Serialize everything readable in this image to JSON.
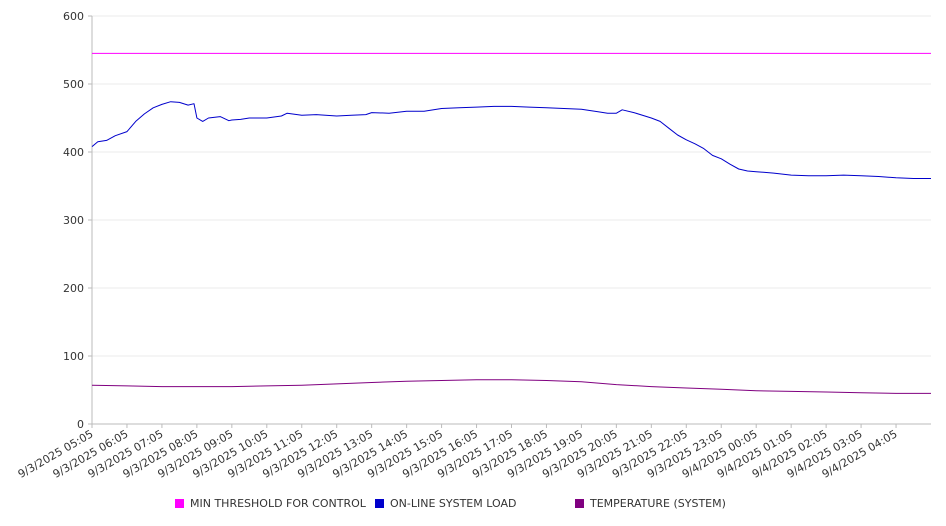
{
  "chart_data": {
    "type": "line",
    "title": "",
    "xlabel": "",
    "ylabel": "",
    "ylim": [
      0,
      600
    ],
    "yticks": [
      0,
      100,
      200,
      300,
      400,
      500,
      600
    ],
    "grid": true,
    "legend_position": "bottom",
    "x_range": [
      "2025-09-03 05:05",
      "2025-09-04 05:05"
    ],
    "categories": [
      "9/3/2025 05:05",
      "9/3/2025 06:05",
      "9/3/2025 07:05",
      "9/3/2025 08:05",
      "9/3/2025 09:05",
      "9/3/2025 10:05",
      "9/3/2025 11:05",
      "9/3/2025 12:05",
      "9/3/2025 13:05",
      "9/3/2025 14:05",
      "9/3/2025 15:05",
      "9/3/2025 16:05",
      "9/3/2025 17:05",
      "9/3/2025 18:05",
      "9/3/2025 19:05",
      "9/3/2025 20:05",
      "9/3/2025 21:05",
      "9/3/2025 22:05",
      "9/3/2025 23:05",
      "9/4/2025 00:05",
      "9/4/2025 01:05",
      "9/4/2025 02:05",
      "9/4/2025 03:05",
      "9/4/2025 04:05"
    ],
    "series": [
      {
        "name": "MIN THRESHOLD FOR CONTROL",
        "color": "#ff00ff",
        "x": [
          "2025-09-03 05:05",
          "2025-09-04 05:05"
        ],
        "values": [
          545,
          545
        ]
      },
      {
        "name": "ON-LINE SYSTEM LOAD",
        "color": "#0000cc",
        "x": [
          "2025-09-03 05:05",
          "2025-09-03 05:15",
          "2025-09-03 05:30",
          "2025-09-03 05:45",
          "2025-09-03 06:05",
          "2025-09-03 06:20",
          "2025-09-03 06:35",
          "2025-09-03 06:50",
          "2025-09-03 07:05",
          "2025-09-03 07:20",
          "2025-09-03 07:35",
          "2025-09-03 07:50",
          "2025-09-03 08:00",
          "2025-09-03 08:05",
          "2025-09-03 08:15",
          "2025-09-03 08:25",
          "2025-09-03 08:45",
          "2025-09-03 09:00",
          "2025-09-03 09:05",
          "2025-09-03 09:20",
          "2025-09-03 09:35",
          "2025-09-03 10:05",
          "2025-09-03 10:30",
          "2025-09-03 10:40",
          "2025-09-03 11:05",
          "2025-09-03 11:30",
          "2025-09-03 12:05",
          "2025-09-03 12:30",
          "2025-09-03 12:55",
          "2025-09-03 13:05",
          "2025-09-03 13:35",
          "2025-09-03 14:05",
          "2025-09-03 14:35",
          "2025-09-03 15:05",
          "2025-09-03 15:35",
          "2025-09-03 16:05",
          "2025-09-03 16:35",
          "2025-09-03 17:05",
          "2025-09-03 17:35",
          "2025-09-03 18:05",
          "2025-09-03 18:35",
          "2025-09-03 19:05",
          "2025-09-03 19:35",
          "2025-09-03 19:50",
          "2025-09-03 20:05",
          "2025-09-03 20:15",
          "2025-09-03 20:35",
          "2025-09-03 21:05",
          "2025-09-03 21:20",
          "2025-09-03 21:35",
          "2025-09-03 21:50",
          "2025-09-03 22:05",
          "2025-09-03 22:20",
          "2025-09-03 22:35",
          "2025-09-03 22:50",
          "2025-09-03 23:05",
          "2025-09-03 23:20",
          "2025-09-03 23:35",
          "2025-09-03 23:50",
          "2025-09-04 00:05",
          "2025-09-04 00:35",
          "2025-09-04 01:05",
          "2025-09-04 01:35",
          "2025-09-04 02:05",
          "2025-09-04 02:35",
          "2025-09-04 03:05",
          "2025-09-04 03:35",
          "2025-09-04 04:05",
          "2025-09-04 04:35",
          "2025-09-04 05:05"
        ],
        "values": [
          408,
          415,
          417,
          424,
          430,
          445,
          456,
          465,
          470,
          474,
          473,
          469,
          471,
          450,
          445,
          450,
          452,
          446,
          447,
          448,
          450,
          450,
          453,
          457,
          454,
          455,
          453,
          454,
          455,
          458,
          457,
          460,
          460,
          464,
          465,
          466,
          467,
          467,
          466,
          465,
          464,
          463,
          459,
          457,
          457,
          462,
          458,
          450,
          445,
          435,
          425,
          418,
          412,
          405,
          395,
          390,
          382,
          375,
          372,
          371,
          369,
          366,
          365,
          365,
          366,
          365,
          364,
          362,
          361,
          361
        ]
      },
      {
        "name": "TEMPERATURE (SYSTEM)",
        "color": "#800080",
        "x": [
          "2025-09-03 05:05",
          "2025-09-03 06:05",
          "2025-09-03 07:05",
          "2025-09-03 08:05",
          "2025-09-03 09:05",
          "2025-09-03 10:05",
          "2025-09-03 11:05",
          "2025-09-03 12:05",
          "2025-09-03 13:05",
          "2025-09-03 14:05",
          "2025-09-03 15:05",
          "2025-09-03 16:05",
          "2025-09-03 17:05",
          "2025-09-03 18:05",
          "2025-09-03 19:05",
          "2025-09-03 20:05",
          "2025-09-03 21:05",
          "2025-09-03 22:05",
          "2025-09-03 23:05",
          "2025-09-04 00:05",
          "2025-09-04 01:05",
          "2025-09-04 02:05",
          "2025-09-04 03:05",
          "2025-09-04 04:05",
          "2025-09-04 05:05"
        ],
        "values": [
          57,
          56,
          55,
          55,
          55,
          56,
          57,
          59,
          61,
          63,
          64,
          65,
          65,
          64,
          62,
          58,
          55,
          53,
          51,
          49,
          48,
          47,
          46,
          45,
          45
        ]
      }
    ]
  }
}
